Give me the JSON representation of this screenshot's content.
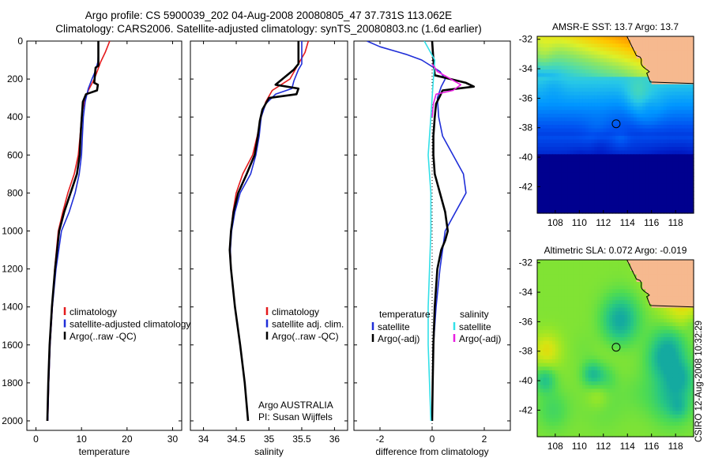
{
  "header": {
    "line1": "Argo profile: CS 5900039_202 04-Aug-2008 20080805_47 37.731S 113.062E",
    "line2": "Climatology: CARS2006. Satellite-adjusted climatology: synTS_20080803.nc (1.6d earlier)"
  },
  "side_label": "CSIRO 12-Aug-2008 10:32:29",
  "colors": {
    "climatology": "#e41a1c",
    "satellite": "#1f2ed8",
    "argo": "#000000",
    "sal_satellite": "#33e0e8",
    "sal_argo": "#e81fe0",
    "land": "#f6b98f",
    "ocean_deep": "#00008f"
  },
  "chart_data": [
    {
      "type": "line",
      "xlabel": "temperature",
      "xlim": [
        -2,
        32
      ],
      "ylim": [
        2050,
        0
      ],
      "xticks": [
        "0",
        "10",
        "20",
        "30"
      ],
      "yticks": [
        "0",
        "200",
        "400",
        "600",
        "800",
        "1000",
        "1200",
        "1400",
        "1600",
        "1800",
        "2000"
      ],
      "legend": [
        "climatology",
        "satellite-adjusted climatology",
        "Argo(..raw -QC)"
      ],
      "series": [
        {
          "name": "climatology",
          "color": "#e41a1c",
          "points": [
            [
              16.2,
              0
            ],
            [
              15.2,
              60
            ],
            [
              14.2,
              110
            ],
            [
              13.6,
              150
            ],
            [
              12.8,
              200
            ],
            [
              11.5,
              260
            ],
            [
              10.6,
              320
            ],
            [
              10.0,
              400
            ],
            [
              9.7,
              500
            ],
            [
              9.3,
              600
            ],
            [
              8.4,
              700
            ],
            [
              7.0,
              800
            ],
            [
              5.9,
              900
            ],
            [
              4.9,
              1000
            ],
            [
              4.1,
              1200
            ],
            [
              3.6,
              1400
            ],
            [
              3.1,
              1600
            ],
            [
              2.8,
              1800
            ],
            [
              2.6,
              2000
            ]
          ]
        },
        {
          "name": "satellite-adjusted climatology",
          "color": "#1f2ed8",
          "points": [
            [
              13.7,
              0
            ],
            [
              13.7,
              60
            ],
            [
              13.6,
              110
            ],
            [
              13.0,
              160
            ],
            [
              12.3,
              200
            ],
            [
              11.5,
              250
            ],
            [
              10.8,
              320
            ],
            [
              10.4,
              400
            ],
            [
              10.2,
              500
            ],
            [
              10.0,
              600
            ],
            [
              9.5,
              700
            ],
            [
              8.6,
              800
            ],
            [
              7.3,
              900
            ],
            [
              5.6,
              1000
            ],
            [
              4.4,
              1200
            ],
            [
              3.6,
              1400
            ],
            [
              3.1,
              1600
            ],
            [
              2.8,
              1800
            ],
            [
              2.6,
              2000
            ]
          ]
        },
        {
          "name": "Argo(..raw -QC)",
          "color": "#000000",
          "points": [
            [
              13.7,
              0
            ],
            [
              13.7,
              100
            ],
            [
              13.7,
              130
            ],
            [
              13.1,
              140
            ],
            [
              12.8,
              220
            ],
            [
              13.6,
              230
            ],
            [
              13.4,
              260
            ],
            [
              11.0,
              280
            ],
            [
              10.3,
              320
            ],
            [
              10.0,
              420
            ],
            [
              9.8,
              500
            ],
            [
              9.6,
              600
            ],
            [
              9.0,
              700
            ],
            [
              7.6,
              800
            ],
            [
              6.2,
              900
            ],
            [
              5.1,
              1000
            ],
            [
              4.2,
              1200
            ],
            [
              3.5,
              1400
            ],
            [
              3.0,
              1600
            ],
            [
              2.7,
              1800
            ],
            [
              2.5,
              2000
            ]
          ]
        }
      ]
    },
    {
      "type": "line",
      "xlabel": "salinity",
      "xlim": [
        33.8,
        36.2
      ],
      "ylim": [
        2050,
        0
      ],
      "xticks": [
        "34",
        "34.5",
        "35",
        "35.5",
        "36"
      ],
      "legend": [
        "climatology",
        "satellite adj. clim.",
        "Argo(..raw -QC)"
      ],
      "annotations": [
        "Argo AUSTRALIA",
        "PI: Susan Wijffels"
      ],
      "series": [
        {
          "name": "climatology",
          "color": "#e41a1c",
          "points": [
            [
              35.6,
              0
            ],
            [
              35.55,
              60
            ],
            [
              35.45,
              120
            ],
            [
              35.32,
              200
            ],
            [
              35.05,
              260
            ],
            [
              34.95,
              320
            ],
            [
              34.88,
              400
            ],
            [
              34.82,
              500
            ],
            [
              34.75,
              600
            ],
            [
              34.6,
              700
            ],
            [
              34.5,
              800
            ],
            [
              34.45,
              900
            ],
            [
              34.42,
              1000
            ],
            [
              34.41,
              1100
            ],
            [
              34.42,
              1200
            ],
            [
              34.48,
              1400
            ],
            [
              34.56,
              1600
            ],
            [
              34.63,
              1800
            ],
            [
              34.68,
              2000
            ]
          ]
        },
        {
          "name": "satellite adj. clim.",
          "color": "#1f2ed8",
          "points": [
            [
              35.5,
              0
            ],
            [
              35.5,
              80
            ],
            [
              35.5,
              120
            ],
            [
              35.45,
              150
            ],
            [
              35.38,
              210
            ],
            [
              35.35,
              250
            ],
            [
              35.1,
              280
            ],
            [
              34.95,
              330
            ],
            [
              34.88,
              400
            ],
            [
              34.85,
              500
            ],
            [
              34.8,
              600
            ],
            [
              34.72,
              700
            ],
            [
              34.56,
              800
            ],
            [
              34.48,
              900
            ],
            [
              34.43,
              1000
            ],
            [
              34.41,
              1100
            ],
            [
              34.42,
              1200
            ],
            [
              34.48,
              1400
            ],
            [
              34.56,
              1600
            ],
            [
              34.63,
              1800
            ],
            [
              34.68,
              2000
            ]
          ]
        },
        {
          "name": "Argo(..raw -QC)",
          "color": "#000000",
          "points": [
            [
              35.45,
              0
            ],
            [
              35.45,
              80
            ],
            [
              35.45,
              120
            ],
            [
              35.38,
              150
            ],
            [
              35.1,
              230
            ],
            [
              35.45,
              250
            ],
            [
              35.42,
              280
            ],
            [
              35.0,
              300
            ],
            [
              34.9,
              360
            ],
            [
              34.86,
              420
            ],
            [
              34.83,
              500
            ],
            [
              34.78,
              600
            ],
            [
              34.66,
              700
            ],
            [
              34.53,
              800
            ],
            [
              34.46,
              900
            ],
            [
              34.42,
              1000
            ],
            [
              34.4,
              1100
            ],
            [
              34.42,
              1200
            ],
            [
              34.48,
              1400
            ],
            [
              34.56,
              1600
            ],
            [
              34.63,
              1800
            ],
            [
              34.68,
              2000
            ]
          ]
        }
      ]
    },
    {
      "type": "line",
      "xlabel": "difference from climatology",
      "xlim": [
        -3,
        3
      ],
      "ylim": [
        2050,
        0
      ],
      "xticks": [
        "-2",
        "0",
        "2"
      ],
      "legend_headings": [
        "temperature",
        "salinity"
      ],
      "legend": [
        "satellite",
        "Argo(-adj)",
        "satellite",
        "Argo(-adj)"
      ],
      "series": [
        {
          "name": "satellite",
          "color": "#1f2ed8",
          "points": [
            [
              -2.5,
              0
            ],
            [
              -2.0,
              30
            ],
            [
              -1.0,
              70
            ],
            [
              -0.4,
              100
            ],
            [
              0.3,
              160
            ],
            [
              0.5,
              200
            ],
            [
              0.35,
              240
            ],
            [
              0.2,
              300
            ],
            [
              0.25,
              400
            ],
            [
              0.4,
              500
            ],
            [
              0.8,
              600
            ],
            [
              1.2,
              700
            ],
            [
              1.3,
              800
            ],
            [
              0.9,
              900
            ],
            [
              0.5,
              1000
            ],
            [
              0.3,
              1200
            ],
            [
              0.15,
              1400
            ],
            [
              0.05,
              1600
            ],
            [
              0.02,
              1800
            ],
            [
              0.0,
              2000
            ]
          ]
        },
        {
          "name": "Argo(-adj)",
          "color": "#000000",
          "points": [
            [
              0.0,
              0
            ],
            [
              0.05,
              100
            ],
            [
              0.1,
              180
            ],
            [
              1.3,
              220
            ],
            [
              1.6,
              240
            ],
            [
              0.4,
              260
            ],
            [
              0.3,
              290
            ],
            [
              0.15,
              330
            ],
            [
              0.1,
              400
            ],
            [
              0.05,
              500
            ],
            [
              0.05,
              600
            ],
            [
              0.1,
              700
            ],
            [
              0.3,
              800
            ],
            [
              0.5,
              900
            ],
            [
              0.6,
              1000
            ],
            [
              0.5,
              1050
            ],
            [
              0.35,
              1100
            ],
            [
              0.2,
              1200
            ],
            [
              0.1,
              1400
            ],
            [
              0.05,
              1600
            ],
            [
              0.02,
              1800
            ],
            [
              0.0,
              2000
            ]
          ]
        },
        {
          "name": "satellite",
          "color": "#33e0e8",
          "points": [
            [
              -0.3,
              0
            ],
            [
              -0.1,
              50
            ],
            [
              0.1,
              100
            ],
            [
              0.05,
              200
            ],
            [
              0.0,
              300
            ],
            [
              -0.05,
              400
            ],
            [
              -0.1,
              500
            ],
            [
              -0.15,
              600
            ],
            [
              -0.1,
              700
            ],
            [
              -0.05,
              800
            ],
            [
              -0.05,
              1000
            ],
            [
              -0.1,
              1200
            ],
            [
              -0.15,
              1400
            ],
            [
              -0.15,
              1600
            ],
            [
              -0.1,
              1800
            ],
            [
              -0.05,
              2000
            ]
          ]
        },
        {
          "name": "Argo(-adj)",
          "color": "#e81fe0",
          "points": [
            [
              0.0,
              120
            ],
            [
              0.2,
              160
            ],
            [
              1.1,
              230
            ],
            [
              0.8,
              260
            ],
            [
              0.15,
              280
            ],
            [
              0.05,
              330
            ],
            [
              0.0,
              400
            ]
          ]
        }
      ]
    },
    {
      "type": "heatmap",
      "title": "AMSR-E SST: 13.7  Argo: 13.7",
      "xlim": [
        106.5,
        119.5
      ],
      "ylim": [
        -43.8,
        -31.8
      ],
      "xticks": [
        "108",
        "110",
        "112",
        "114",
        "116",
        "118"
      ],
      "yticks": [
        "-32",
        "-34",
        "-36",
        "-38",
        "-40",
        "-42"
      ],
      "marker": [
        113.062,
        -37.731
      ]
    },
    {
      "type": "heatmap",
      "title": "Altimetric SLA: 0.072  Argo: -0.019",
      "xlim": [
        106.5,
        119.5
      ],
      "ylim": [
        -43.8,
        -31.8
      ],
      "xticks": [
        "108",
        "110",
        "112",
        "114",
        "116",
        "118"
      ],
      "yticks": [
        "-32",
        "-34",
        "-36",
        "-38",
        "-40",
        "-42"
      ],
      "marker": [
        113.062,
        -37.731
      ]
    }
  ]
}
